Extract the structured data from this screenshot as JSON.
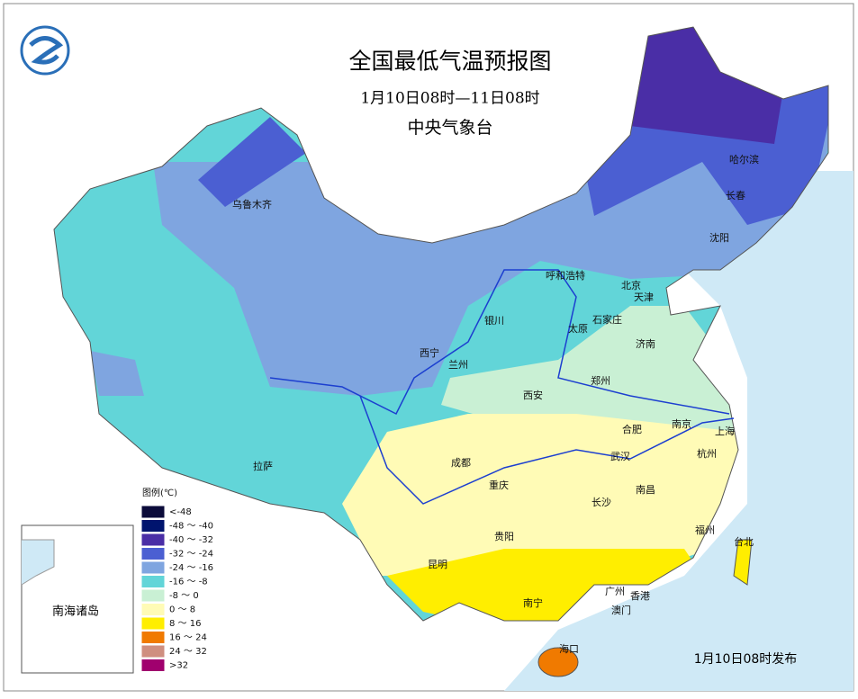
{
  "header": {
    "title": "全国最低气温预报图",
    "period": "1月10日08时—11日08时",
    "issuer": "中央气象台"
  },
  "cities": [
    "乌鲁木齐",
    "哈尔滨",
    "长春",
    "沈阳",
    "呼和浩特",
    "北京",
    "天津",
    "石家庄",
    "银川",
    "太原",
    "济南",
    "西宁",
    "兰州",
    "西安",
    "郑州",
    "合肥",
    "南京",
    "上海",
    "拉萨",
    "成都",
    "重庆",
    "武汉",
    "杭州",
    "南昌",
    "长沙",
    "贵阳",
    "福州",
    "台北",
    "昆明",
    "南宁",
    "广州",
    "香港",
    "澳门",
    "海口"
  ],
  "legend": {
    "title": "图例(℃)",
    "items": [
      {
        "label": "<-48",
        "color": "#0b0b3a"
      },
      {
        "label": "-48 ～ -40",
        "color": "#00146e"
      },
      {
        "label": "-40 ～ -32",
        "color": "#4a2ea6"
      },
      {
        "label": "-32 ～ -24",
        "color": "#4b5fd2"
      },
      {
        "label": "-24 ～ -16",
        "color": "#7fa5e0"
      },
      {
        "label": "-16 ～ -8",
        "color": "#62d5d8"
      },
      {
        "label": "-8 ～ 0",
        "color": "#c9f0d4"
      },
      {
        "label": "0 ～ 8",
        "color": "#fffbb6"
      },
      {
        "label": "8 ～ 16",
        "color": "#ffee00"
      },
      {
        "label": "16 ～ 24",
        "color": "#f07a00"
      },
      {
        "label": "24 ～ 32",
        "color": "#cf8f80"
      },
      {
        "label": ">32",
        "color": "#a0006e"
      }
    ]
  },
  "inset": {
    "label": "南海诸岛"
  },
  "footer": {
    "issued": "1月10日08时发布"
  }
}
